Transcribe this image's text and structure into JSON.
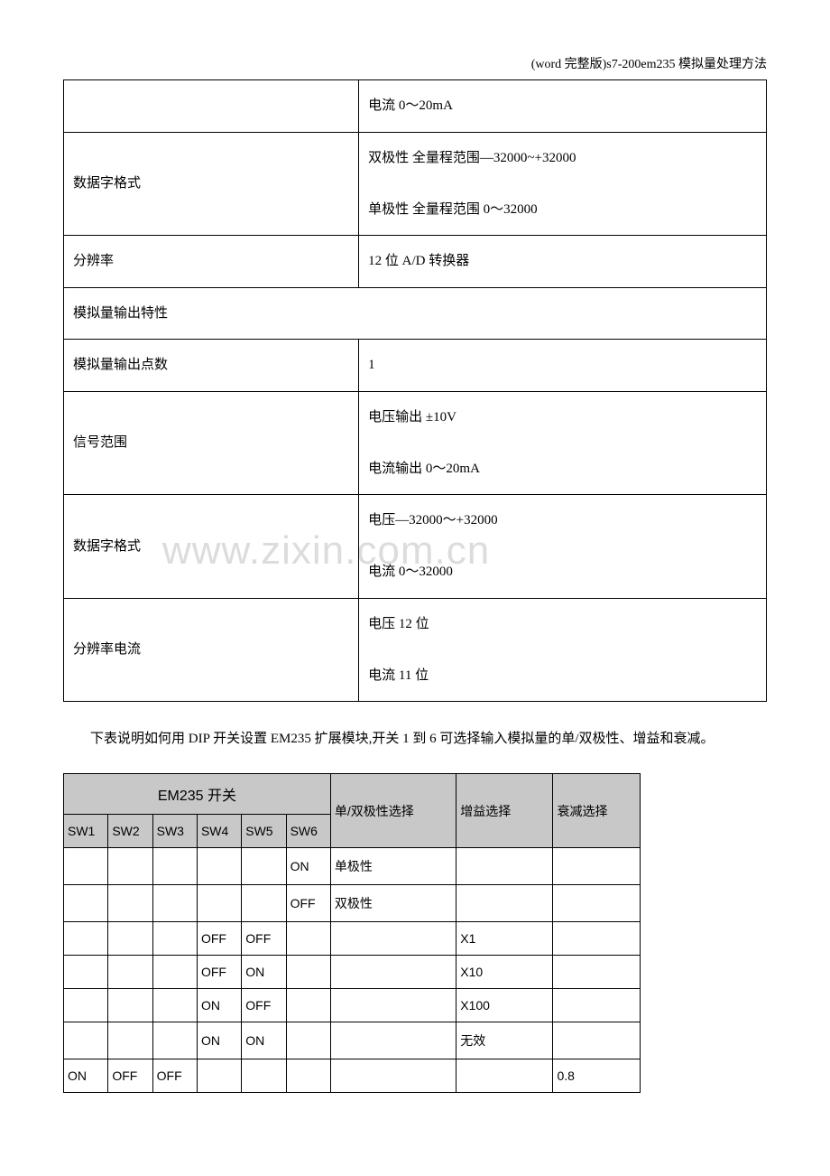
{
  "header": "(word 完整版)s7-200em235 模拟量处理方法",
  "watermark": "www.zixin.com.cn",
  "specTable": {
    "rows": [
      {
        "left": "",
        "right": "电流 0～20mA"
      },
      {
        "left": "数据字格式",
        "right": "双极性  全量程范围—32000~+32000\n\n单极性  全量程范围 0～32000"
      },
      {
        "left": "分辨率",
        "right": "12 位 A/D 转换器"
      },
      {
        "left": "模拟量输出特性",
        "right": "",
        "span": true
      },
      {
        "left": "模拟量输出点数",
        "right": "1"
      },
      {
        "left": "信号范围",
        "right": "电压输出  ±10V\n\n电流输出 0～20mA"
      },
      {
        "left": "数据字格式",
        "right": "电压—32000～+32000\n\n电流 0～32000"
      },
      {
        "left": "分辨率电流",
        "right": "电压 12 位\n\n电流 11 位"
      }
    ]
  },
  "bodyText": "下表说明如何用 DIP 开关设置 EM235 扩展模块,开关 1 到 6 可选择输入模拟量的单/双极性、增益和衰减。",
  "dipTable": {
    "groupHeader": "EM235 开关",
    "swHeaders": [
      "SW1",
      "SW2",
      "SW3",
      "SW4",
      "SW5",
      "SW6"
    ],
    "polHeader": "单/双极性选择",
    "gainHeader": "增益选择",
    "attHeader": "衰减选择",
    "rows": [
      {
        "sw": [
          "",
          "",
          "",
          "",
          "",
          "ON"
        ],
        "pol": "单极性",
        "gain": "",
        "att": ""
      },
      {
        "sw": [
          "",
          "",
          "",
          "",
          "",
          "OFF"
        ],
        "pol": "双极性",
        "gain": "",
        "att": ""
      },
      {
        "sw": [
          "",
          "",
          "",
          "OFF",
          "OFF",
          ""
        ],
        "pol": "",
        "gain": "X1",
        "att": ""
      },
      {
        "sw": [
          "",
          "",
          "",
          "OFF",
          "ON",
          ""
        ],
        "pol": "",
        "gain": "X10",
        "att": ""
      },
      {
        "sw": [
          "",
          "",
          "",
          "ON",
          "OFF",
          ""
        ],
        "pol": "",
        "gain": "X100",
        "att": ""
      },
      {
        "sw": [
          "",
          "",
          "",
          "ON",
          "ON",
          ""
        ],
        "pol": "",
        "gain": "无效",
        "att": ""
      },
      {
        "sw": [
          "ON",
          "OFF",
          "OFF",
          "",
          "",
          ""
        ],
        "pol": "",
        "gain": "",
        "att": "0.8"
      }
    ]
  }
}
